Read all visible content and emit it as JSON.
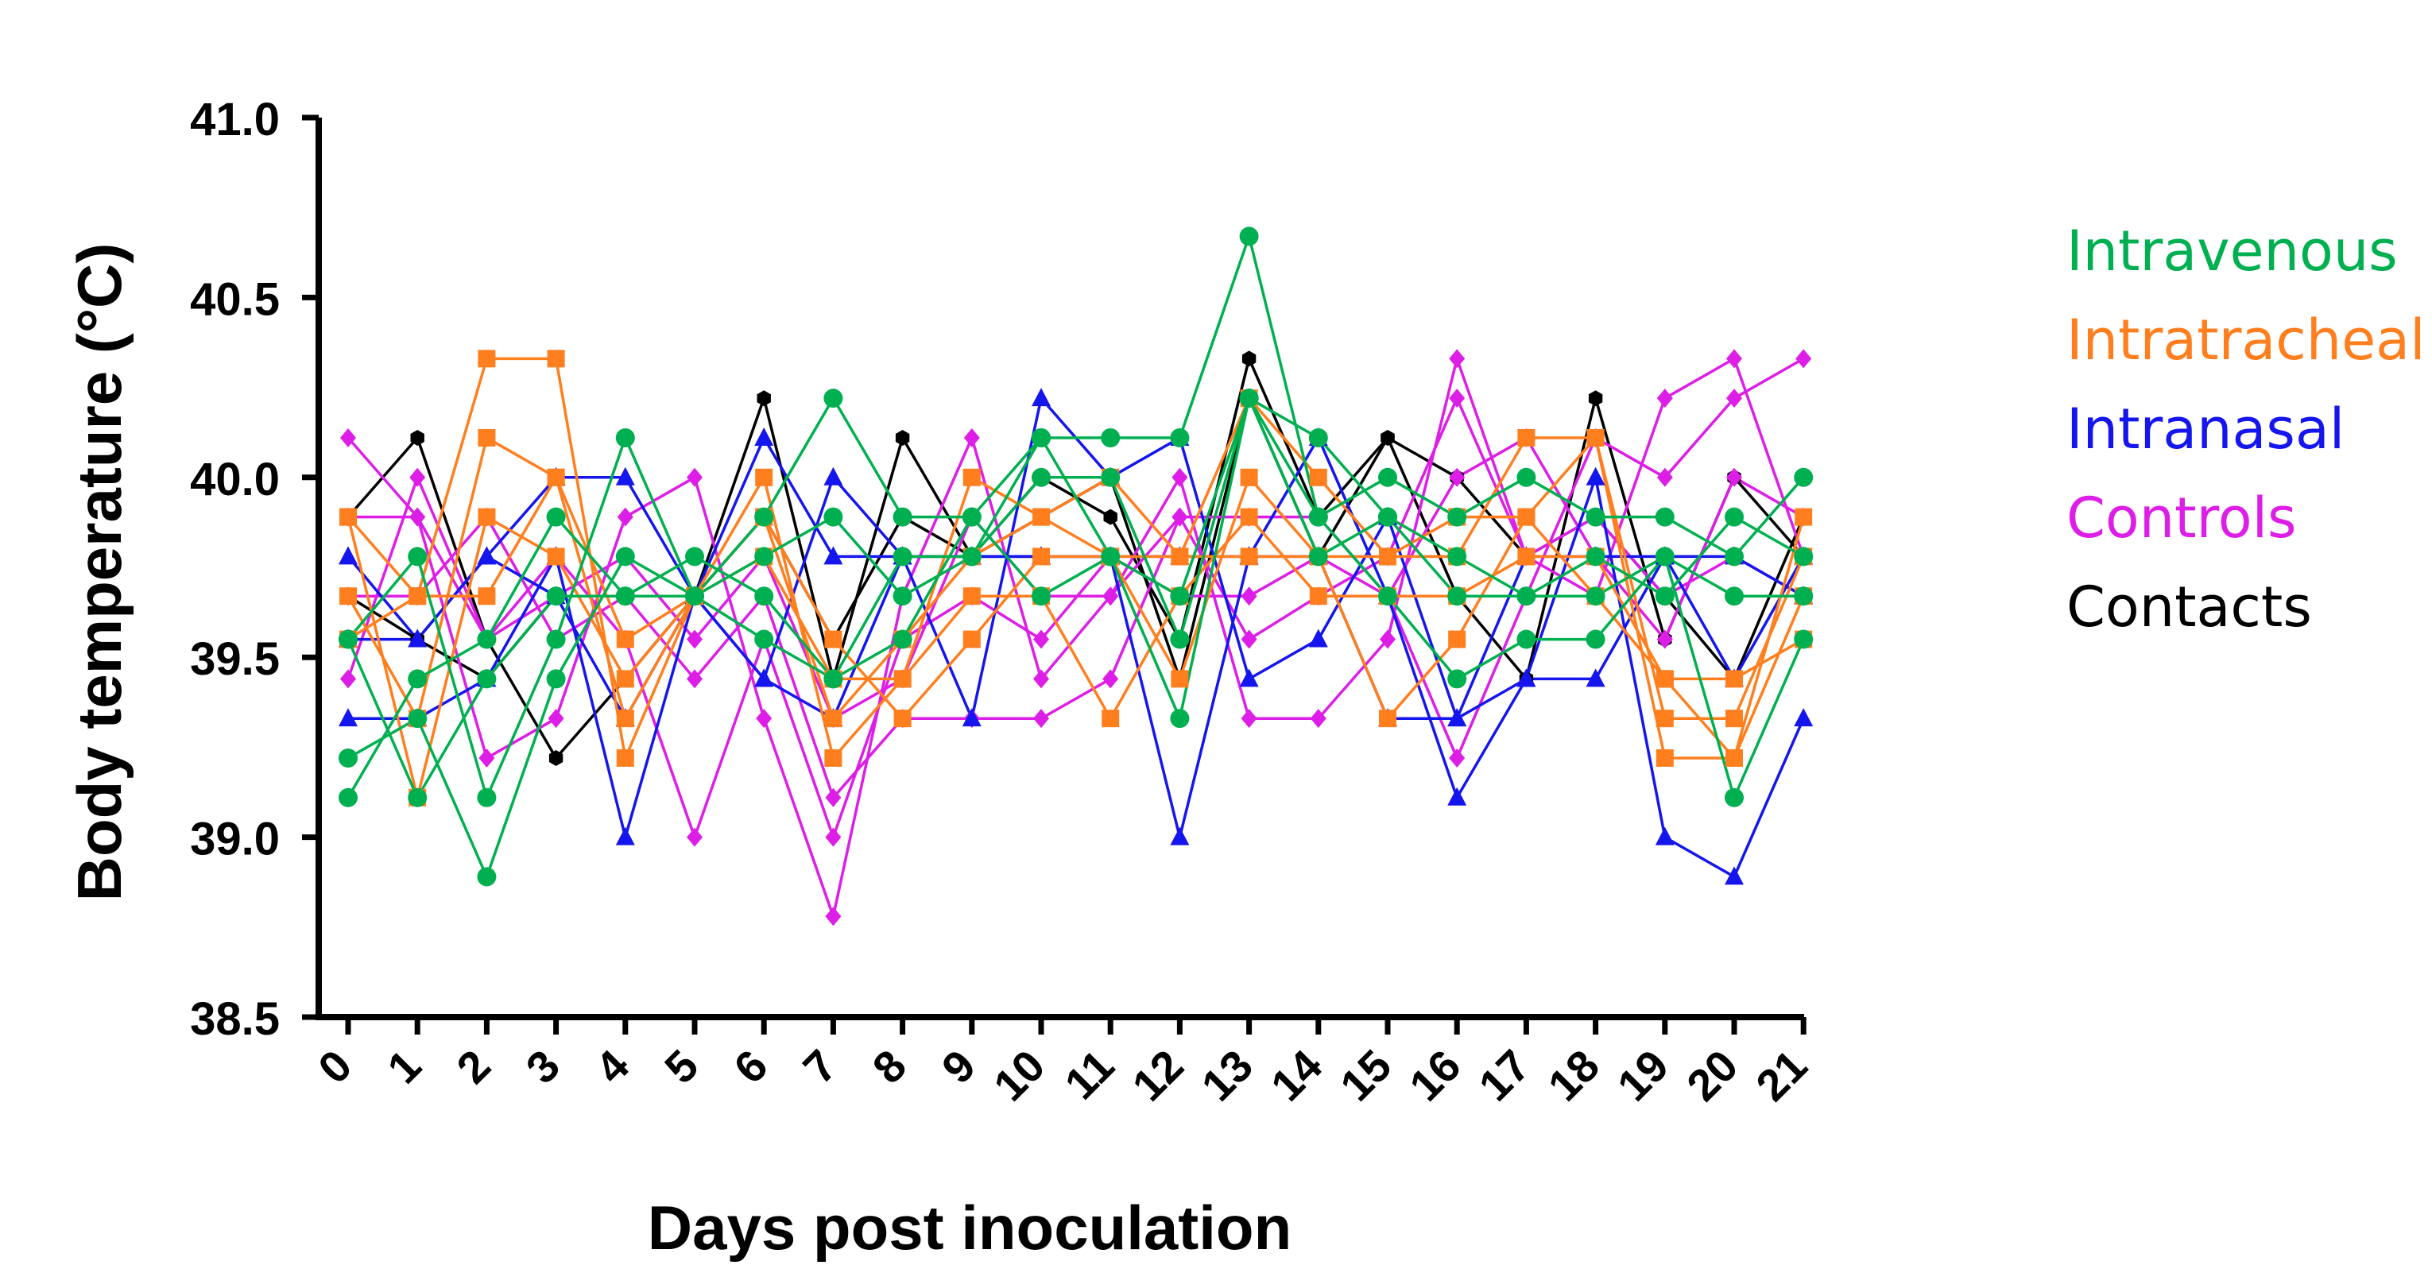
{
  "chart_data": {
    "type": "line",
    "title": "",
    "xlabel": "Days post inoculation",
    "ylabel": "Body temperature (°C)",
    "ylim": [
      38.5,
      41.0
    ],
    "yticks": [
      "38.5",
      "39.0",
      "39.5",
      "40.0",
      "40.5",
      "41.0"
    ],
    "categories": [
      "0",
      "1",
      "2",
      "3",
      "4",
      "5",
      "6",
      "7",
      "8",
      "9",
      "10",
      "11",
      "12",
      "13",
      "14",
      "15",
      "16",
      "17",
      "18",
      "19",
      "20",
      "21"
    ],
    "legend_position": "right",
    "groups": [
      {
        "name": "Intravenous",
        "color": "#00b050",
        "marker": "circle"
      },
      {
        "name": "Intratracheal",
        "color": "#ff7f1f",
        "marker": "square"
      },
      {
        "name": "Intranasal",
        "color": "#1515ee",
        "marker": "triangle"
      },
      {
        "name": "Controls",
        "color": "#dd1ee6",
        "marker": "diamond"
      },
      {
        "name": "Contacts",
        "color": "#000000",
        "marker": "hexagon"
      }
    ],
    "series": [
      {
        "group": "Intravenous",
        "values": [
          39.55,
          39.78,
          39.11,
          39.55,
          40.11,
          39.67,
          39.89,
          40.22,
          39.89,
          39.89,
          40.11,
          40.11,
          40.11,
          40.67,
          39.89,
          40.0,
          39.89,
          40.0,
          39.89,
          39.89,
          39.78,
          40.0
        ]
      },
      {
        "group": "Intravenous",
        "values": [
          39.11,
          39.44,
          39.55,
          39.89,
          39.67,
          39.67,
          39.78,
          39.89,
          39.67,
          39.78,
          40.0,
          40.0,
          39.55,
          40.22,
          39.78,
          39.89,
          39.67,
          39.67,
          39.78,
          39.67,
          39.89,
          39.78
        ]
      },
      {
        "group": "Intravenous",
        "values": [
          39.22,
          39.33,
          38.89,
          39.44,
          39.78,
          39.67,
          39.55,
          39.44,
          39.55,
          39.89,
          39.67,
          39.78,
          39.33,
          40.22,
          39.89,
          39.67,
          39.44,
          39.55,
          39.55,
          39.78,
          39.67,
          39.67
        ]
      },
      {
        "group": "Intravenous",
        "values": [
          39.55,
          39.11,
          39.44,
          39.67,
          39.67,
          39.78,
          39.67,
          39.44,
          39.78,
          39.78,
          40.11,
          39.78,
          39.67,
          40.22,
          40.11,
          39.89,
          39.78,
          39.67,
          39.67,
          39.78,
          39.11,
          39.55
        ]
      },
      {
        "group": "Intratracheal",
        "values": [
          39.89,
          39.67,
          40.33,
          40.33,
          39.22,
          39.67,
          40.0,
          39.22,
          39.44,
          40.0,
          39.89,
          40.0,
          39.78,
          40.22,
          40.0,
          39.78,
          39.78,
          40.11,
          40.11,
          39.22,
          39.22,
          39.89
        ]
      },
      {
        "group": "Intratracheal",
        "values": [
          39.67,
          39.33,
          40.11,
          40.0,
          39.33,
          39.67,
          39.89,
          39.55,
          39.33,
          39.55,
          39.78,
          39.78,
          39.44,
          40.0,
          39.78,
          39.33,
          39.55,
          39.89,
          40.11,
          39.33,
          39.33,
          39.78
        ]
      },
      {
        "group": "Intratracheal",
        "values": [
          39.55,
          39.67,
          39.67,
          40.0,
          39.55,
          39.67,
          39.78,
          39.44,
          39.44,
          39.67,
          39.67,
          39.33,
          39.67,
          39.89,
          39.67,
          39.67,
          39.67,
          39.78,
          39.78,
          39.44,
          39.44,
          39.55
        ]
      },
      {
        "group": "Intratracheal",
        "values": [
          39.89,
          39.11,
          39.89,
          39.78,
          39.44,
          39.67,
          39.89,
          39.33,
          39.55,
          39.78,
          39.89,
          39.78,
          39.78,
          39.78,
          39.78,
          39.78,
          39.89,
          39.89,
          39.67,
          39.44,
          39.22,
          39.67
        ]
      },
      {
        "group": "Intranasal",
        "values": [
          39.78,
          39.55,
          39.78,
          40.0,
          40.0,
          39.67,
          39.44,
          40.0,
          39.78,
          39.33,
          40.22,
          40.0,
          40.11,
          39.44,
          39.55,
          39.89,
          39.33,
          39.44,
          40.0,
          39.0,
          38.89,
          39.33
        ]
      },
      {
        "group": "Intranasal",
        "values": [
          39.33,
          39.33,
          39.44,
          39.78,
          39.0,
          39.67,
          39.44,
          39.33,
          39.78,
          39.78,
          39.78,
          39.78,
          39.0,
          39.78,
          40.11,
          39.67,
          39.11,
          39.44,
          39.44,
          39.78,
          39.78,
          39.67
        ]
      },
      {
        "group": "Intranasal",
        "values": [
          39.55,
          39.55,
          39.78,
          39.67,
          39.33,
          39.67,
          40.11,
          39.78,
          39.78,
          39.78,
          39.78,
          39.78,
          39.78,
          39.78,
          39.78,
          39.33,
          39.33,
          39.78,
          39.78,
          39.78,
          39.44,
          39.78
        ]
      },
      {
        "group": "Controls",
        "values": [
          40.11,
          39.89,
          39.22,
          39.33,
          39.89,
          40.0,
          39.33,
          38.78,
          39.67,
          40.11,
          39.44,
          39.67,
          40.0,
          39.33,
          39.33,
          39.55,
          40.33,
          39.78,
          39.67,
          40.22,
          40.33,
          39.78
        ]
      },
      {
        "group": "Controls",
        "values": [
          39.44,
          40.0,
          39.55,
          39.78,
          39.55,
          39.0,
          39.55,
          39.0,
          39.55,
          39.67,
          39.55,
          39.78,
          39.67,
          39.67,
          39.78,
          39.67,
          39.22,
          39.67,
          40.11,
          40.0,
          40.22,
          40.33
        ]
      },
      {
        "group": "Controls",
        "values": [
          39.67,
          39.67,
          39.89,
          39.55,
          39.67,
          39.44,
          39.67,
          39.11,
          39.33,
          39.33,
          39.33,
          39.44,
          39.89,
          39.55,
          39.67,
          39.78,
          40.22,
          39.78,
          39.89,
          39.67,
          39.78,
          39.67
        ]
      },
      {
        "group": "Controls",
        "values": [
          39.89,
          39.89,
          39.55,
          39.67,
          39.78,
          39.55,
          39.78,
          39.33,
          39.44,
          39.89,
          39.67,
          39.67,
          39.89,
          39.89,
          39.89,
          39.67,
          40.0,
          40.11,
          39.78,
          39.55,
          40.0,
          39.89
        ]
      },
      {
        "group": "Contacts",
        "values": [
          39.89,
          40.11,
          39.55,
          39.22,
          39.44,
          39.67,
          40.22,
          39.44,
          40.11,
          39.78,
          40.0,
          39.89,
          39.55,
          40.33,
          39.89,
          40.11,
          39.67,
          39.44,
          40.22,
          39.55,
          40.0,
          39.78
        ]
      },
      {
        "group": "Contacts",
        "values": [
          39.67,
          39.55,
          39.44,
          39.67,
          39.67,
          39.67,
          39.89,
          39.55,
          39.89,
          39.78,
          39.89,
          40.0,
          39.44,
          40.22,
          39.78,
          40.11,
          40.0,
          39.78,
          39.89,
          39.67,
          39.44,
          39.89
        ]
      }
    ]
  }
}
